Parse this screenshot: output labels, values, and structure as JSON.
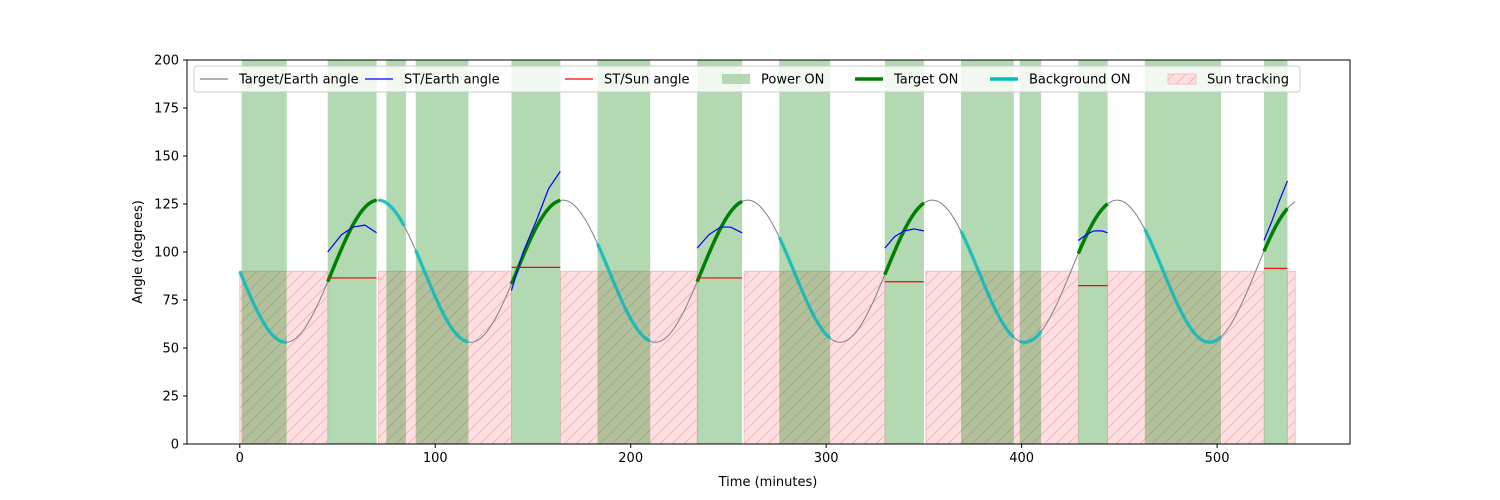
{
  "chart_data": {
    "type": "line",
    "title": "",
    "xlabel": "Time (minutes)",
    "ylabel": "Angle (degrees)",
    "xlim": [
      -27,
      568
    ],
    "ylim": [
      0,
      200
    ],
    "xticks": [
      0,
      100,
      200,
      300,
      400,
      500
    ],
    "yticks": [
      0,
      25,
      50,
      75,
      100,
      125,
      150,
      175,
      200
    ],
    "grid": false,
    "legend_position": "top",
    "legend": [
      {
        "label": "Target/Earth angle",
        "kind": "line",
        "color": "#808080"
      },
      {
        "label": "ST/Earth angle",
        "kind": "line",
        "color": "#0000ff"
      },
      {
        "label": "ST/Sun angle",
        "kind": "line",
        "color": "#ff0000"
      },
      {
        "label": "Power ON",
        "kind": "patch",
        "color": "#b3d9b3"
      },
      {
        "label": "Target ON",
        "kind": "thick-line",
        "color": "#008000"
      },
      {
        "label": "Background ON",
        "kind": "thick-line",
        "color": "#00bfbf"
      },
      {
        "label": "Sun tracking",
        "kind": "hatch",
        "color": "#ffdde0"
      }
    ],
    "target_earth_model": {
      "period_min": 94.5,
      "mean": 90,
      "amplitude": 37,
      "phase_min": 23.6,
      "x_range": [
        0,
        540
      ]
    },
    "power_on_intervals": [
      [
        1,
        24
      ],
      [
        45,
        70
      ],
      [
        75,
        85
      ],
      [
        90,
        117
      ],
      [
        139,
        164
      ],
      [
        183,
        210
      ],
      [
        234,
        257
      ],
      [
        276,
        302
      ],
      [
        330,
        350
      ],
      [
        369,
        396
      ],
      [
        399,
        410
      ],
      [
        429,
        444
      ],
      [
        463,
        502
      ],
      [
        524,
        536
      ]
    ],
    "sun_tracking_intervals": [
      [
        0,
        45
      ],
      [
        71,
        139
      ],
      [
        164,
        234
      ],
      [
        258,
        330
      ],
      [
        351,
        429
      ],
      [
        444,
        524
      ],
      [
        536,
        540
      ]
    ],
    "target_on_intervals": [
      [
        45,
        70
      ],
      [
        139,
        164
      ],
      [
        234,
        257
      ],
      [
        330,
        350
      ],
      [
        429,
        444
      ],
      [
        524,
        536
      ]
    ],
    "background_on_intervals": [
      [
        0,
        24
      ],
      [
        71,
        84
      ],
      [
        90,
        117
      ],
      [
        183,
        210
      ],
      [
        276,
        302
      ],
      [
        369,
        396
      ],
      [
        399,
        410
      ],
      [
        463,
        502
      ]
    ],
    "st_earth_series": [
      {
        "x": [
          45,
          52,
          58,
          64,
          70
        ],
        "y": [
          100,
          109,
          113,
          114,
          110
        ]
      },
      {
        "x": [
          139,
          145,
          152,
          158,
          164
        ],
        "y": [
          80,
          100,
          117,
          133,
          142
        ]
      },
      {
        "x": [
          234,
          240,
          246,
          251,
          257
        ],
        "y": [
          102,
          109,
          113,
          113,
          110
        ]
      },
      {
        "x": [
          330,
          335,
          340,
          345,
          350
        ],
        "y": [
          102,
          108,
          111,
          112,
          111
        ]
      },
      {
        "x": [
          429,
          433,
          437,
          441,
          444
        ],
        "y": [
          106,
          109,
          111,
          111,
          110
        ]
      },
      {
        "x": [
          524,
          528,
          532,
          536
        ],
        "y": [
          106,
          116,
          127,
          137
        ]
      }
    ],
    "st_sun_series": [
      {
        "x": [
          45,
          70
        ],
        "y": [
          86.5,
          86.5
        ]
      },
      {
        "x": [
          139,
          164
        ],
        "y": [
          92,
          92
        ]
      },
      {
        "x": [
          234,
          257
        ],
        "y": [
          86.5,
          86.5
        ]
      },
      {
        "x": [
          330,
          350
        ],
        "y": [
          84.5,
          84.5
        ]
      },
      {
        "x": [
          429,
          444
        ],
        "y": [
          82.5,
          82.5
        ]
      },
      {
        "x": [
          524,
          536
        ],
        "y": [
          91.5,
          91.5
        ]
      }
    ]
  }
}
